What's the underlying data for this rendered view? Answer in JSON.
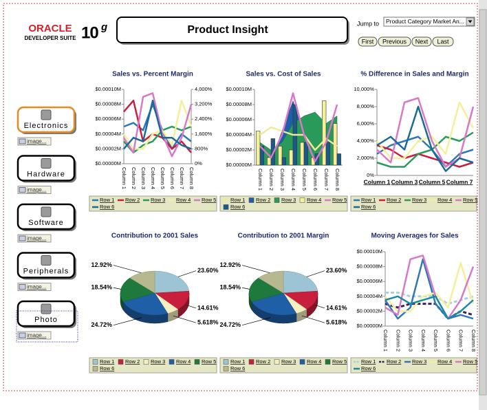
{
  "header": {
    "logo_brand": "ORACLE",
    "logo_suite": "DEVELOPER SUITE",
    "logo_version": "10",
    "logo_version_sup": "g",
    "title": "Product Insight"
  },
  "jump": {
    "label": "Jump to",
    "selected": "Product Category Market An...",
    "buttons": [
      "First",
      "Previous",
      "Next",
      "Last"
    ]
  },
  "nav": [
    {
      "label": "Electronics",
      "link": "image..."
    },
    {
      "label": "Hardware",
      "link": "image..."
    },
    {
      "label": "Software",
      "link": "image..."
    },
    {
      "label": "Peripherals",
      "link": "image..."
    },
    {
      "label": "Photo",
      "link": "image..."
    }
  ],
  "charts": [
    {
      "type": "line",
      "title": "Sales vs. Percent Margin",
      "categories": [
        "Column 1",
        "Column 2",
        "Column 3",
        "Column 4",
        "Column 5",
        "Column 6",
        "Column 7",
        "Column 8"
      ],
      "ylim": [
        0,
        0.0001
      ],
      "yticks": [
        {
          "value": 0,
          "label": "$0.00000M"
        },
        {
          "value": 2e-05,
          "label": "$0.00002M"
        },
        {
          "value": 4e-05,
          "label": "$0.00004M"
        },
        {
          "value": 6e-05,
          "label": "$0.00006M"
        },
        {
          "value": 8e-05,
          "label": "$0.00008M"
        },
        {
          "value": 0.0001,
          "label": "$0.00010M"
        }
      ],
      "y2lim": [
        0,
        4000
      ],
      "y2ticks": [
        {
          "value": 0,
          "label": "0%"
        },
        {
          "value": 800,
          "label": "800%"
        },
        {
          "value": 1600,
          "label": "1,600%"
        },
        {
          "value": 2400,
          "label": "2,400%"
        },
        {
          "value": 3200,
          "label": "3,200%"
        },
        {
          "value": 4000,
          "label": "4,000%"
        }
      ],
      "series": [
        {
          "name": "Row 1",
          "color": "#2f78b8",
          "values": [
            5e-05,
            5.5e-05,
            4.5e-05,
            8e-05,
            4.5e-05,
            2e-05,
            4e-05,
            3e-05
          ]
        },
        {
          "name": "Row 2",
          "color": "#c8203c",
          "values": [
            7e-05,
            8.5e-05,
            3e-05,
            4e-05,
            3.5e-05,
            2e-05,
            3e-05,
            1.5e-05
          ]
        },
        {
          "name": "Row 3",
          "color": "#2a9a5a",
          "values": [
            3e-05,
            1.5e-05,
            2.5e-05,
            3e-05,
            4.5e-05,
            5e-05,
            4.5e-05,
            5e-05
          ]
        },
        {
          "name": "Row 4",
          "color": "#f4f09a",
          "values": [
            4e-05,
            2e-05,
            2e-05,
            4e-05,
            4.5e-05,
            2.5e-05,
            8.5e-05,
            5e-05
          ]
        },
        {
          "name": "Row 5",
          "color": "#d878c8",
          "values": [
            3.5e-05,
            1.5e-05,
            9e-05,
            9.5e-05,
            4e-05,
            1e-05,
            3.5e-05,
            8e-05
          ]
        },
        {
          "name": "Row 6",
          "color": "#1a6a98",
          "values": [
            2e-05,
            3.5e-05,
            3e-05,
            8.5e-05,
            3.5e-05,
            3.5e-05,
            2.5e-05,
            2e-05
          ]
        }
      ]
    },
    {
      "type": "bar",
      "title": "Sales vs. Cost of Sales",
      "categories": [
        "Column 1",
        "Column 2",
        "Column 3",
        "Column 4",
        "Column 5",
        "Column 6",
        "Column 7",
        "Column 8"
      ],
      "ylim": [
        0,
        0.0001
      ],
      "yticks": [
        {
          "value": 0,
          "label": "$0.00000M"
        },
        {
          "value": 2e-05,
          "label": "$0.00002M"
        },
        {
          "value": 4e-05,
          "label": "$0.00004M"
        },
        {
          "value": 6e-05,
          "label": "$0.00006M"
        },
        {
          "value": 8e-05,
          "label": "$0.00008M"
        },
        {
          "value": 0.0001,
          "label": "$0.00010M"
        }
      ],
      "series": [
        {
          "name": "Row 1",
          "color": "#eeea96",
          "mark": "line",
          "values": [
            4e-05,
            5e-05,
            4.5e-05,
            4e-05,
            4e-05,
            2e-05,
            3.5e-05,
            2.5e-05
          ]
        },
        {
          "name": "Row 2",
          "color": "#1f5fa8",
          "mark": "area",
          "values": [
            2e-05,
            5e-06,
            4.5e-05,
            8.5e-05,
            4e-05,
            5e-06,
            2e-05,
            2e-05
          ]
        },
        {
          "name": "Row 3",
          "color": "#2a9a5a",
          "mark": "area",
          "values": [
            3e-05,
            2e-05,
            3e-05,
            5.5e-05,
            6.5e-05,
            7e-05,
            5.5e-05,
            6.5e-05
          ]
        },
        {
          "name": "Row 4",
          "color": "#f4f09a",
          "mark": "bar",
          "values": [
            4.5e-05,
            1e-05,
            2.5e-05,
            2e-05,
            3e-05,
            1e-05,
            8.5e-05,
            5.5e-05
          ]
        },
        {
          "name": "Row 5",
          "color": "#d878c8",
          "mark": "line",
          "values": [
            2.5e-05,
            1e-05,
            4e-05,
            9.5e-05,
            4e-05,
            5e-06,
            3e-05,
            8e-05
          ]
        },
        {
          "name": "Row 6",
          "color": "#1a5a88",
          "mark": "bar",
          "values": [
            2.5e-05,
            3.5e-05,
            1e-05,
            8e-05,
            3e-05,
            1.5e-05,
            3e-05,
            1.5e-05
          ]
        }
      ]
    },
    {
      "type": "line",
      "title": "% Difference in Sales and Margin",
      "categories": [
        "Column 1",
        null,
        "Column 3",
        null,
        "Column 5",
        null,
        "Column 7",
        null
      ],
      "ylim": [
        0,
        10000
      ],
      "yticks": [
        {
          "value": 0,
          "label": "0%"
        },
        {
          "value": 2000,
          "label": "2,000%"
        },
        {
          "value": 4000,
          "label": "4,000%"
        },
        {
          "value": 6000,
          "label": "6,000%"
        },
        {
          "value": 8000,
          "label": "8,000%"
        },
        {
          "value": 10000,
          "label": "10,000%"
        }
      ],
      "series": [
        {
          "name": "Row 1",
          "color": "#2f78b8",
          "values": [
            2500,
            3500,
            4000,
            4500,
            3000,
            1000,
            2500,
            3000
          ]
        },
        {
          "name": "Row 2",
          "color": "#c8203c",
          "values": [
            3500,
            3000,
            2000,
            2500,
            2000,
            1500,
            1000,
            1500
          ]
        },
        {
          "name": "Row 3",
          "color": "#2a9a5a",
          "values": [
            1500,
            1000,
            1000,
            2500,
            3000,
            4500,
            4000,
            5000
          ]
        },
        {
          "name": "Row 4",
          "color": "#f4f09a",
          "values": [
            4000,
            2000,
            2000,
            4000,
            4500,
            2500,
            8500,
            5500
          ]
        },
        {
          "name": "Row 5",
          "color": "#d878c8",
          "values": [
            3000,
            1500,
            8500,
            9000,
            4000,
            1000,
            2000,
            8000
          ]
        },
        {
          "name": "Row 6",
          "color": "#1a6a98",
          "values": [
            3500,
            4500,
            3000,
            8000,
            3000,
            500,
            2000,
            1500
          ]
        }
      ]
    },
    {
      "type": "pie",
      "title": "Contribution to 2001 Sales",
      "categories": [
        "Row 1",
        "Row 2",
        "Row 3",
        "Row 4",
        "Row 5",
        "Row 6"
      ],
      "values": [
        23.6,
        14.61,
        5.618,
        24.72,
        18.54,
        12.92
      ],
      "value_labels": [
        "23.60%",
        "14.61%",
        "5.618%",
        "24.72%",
        "18.54%",
        "12.92%"
      ],
      "colors": [
        "#9cc4d4",
        "#c8203c",
        "#f4f0c0",
        "#1f5fa8",
        "#1e7a3c",
        "#b8b890"
      ]
    },
    {
      "type": "pie",
      "title": "Contribution to 2001 Margin",
      "categories": [
        "Row 1",
        "Row 2",
        "Row 3",
        "Row 4",
        "Row 5",
        "Row 6"
      ],
      "values": [
        23.6,
        14.61,
        5.618,
        24.72,
        18.54,
        12.92
      ],
      "value_labels": [
        "23.60%",
        "14.61%",
        "5.618%",
        "24.72%",
        "18.54%",
        "12.92%"
      ],
      "colors": [
        "#9cc4d4",
        "#c8203c",
        "#f4f0c0",
        "#1f5fa8",
        "#1e7a3c",
        "#b8b890"
      ]
    },
    {
      "type": "line",
      "title": "Moving Averages for Sales",
      "categories": [
        "Column 1",
        "Column 2",
        "Column 3",
        "Column 4",
        "Column 5",
        "Column 6",
        "Column 7",
        "Column 8"
      ],
      "ylim": [
        0,
        0.0001
      ],
      "yticks": [
        {
          "value": 0,
          "label": "$0.00000M"
        },
        {
          "value": 2e-05,
          "label": "$0.00002M"
        },
        {
          "value": 4e-05,
          "label": "$0.00004M"
        },
        {
          "value": 6e-05,
          "label": "$0.00006M"
        },
        {
          "value": 8e-05,
          "label": "$0.00008M"
        },
        {
          "value": 0.0001,
          "label": "$0.00010M"
        }
      ],
      "series": [
        {
          "name": "Row 1",
          "color": "#a8d0d8",
          "style": "dashed",
          "values": [
            4.5e-05,
            4.5e-05,
            4e-05,
            4e-05,
            4e-05,
            3e-05,
            3.5e-05,
            4e-05
          ]
        },
        {
          "name": "Row 2",
          "color": "#3a2060",
          "style": "dashed",
          "values": [
            3e-05,
            2.5e-05,
            3e-05,
            3e-05,
            3e-05,
            1e-05,
            2e-05,
            1.5e-05
          ]
        },
        {
          "name": "Row 3",
          "color": "#2f78b8",
          "values": [
            3.5e-05,
            1e-05,
            2.5e-05,
            9e-05,
            3e-05,
            1e-05,
            1.5e-05,
            1e-05
          ]
        },
        {
          "name": "Row 4",
          "color": "#f4f09a",
          "values": [
            4e-05,
            2e-05,
            2e-05,
            4e-05,
            4.5e-05,
            2.5e-05,
            8.5e-05,
            3e-05
          ]
        },
        {
          "name": "Row 5",
          "color": "#d878c8",
          "values": [
            2.5e-05,
            1.5e-05,
            9e-05,
            9.5e-05,
            4e-05,
            1e-05,
            3.5e-05,
            8e-05
          ]
        },
        {
          "name": "Row 6",
          "color": "#1a8aa0",
          "values": [
            3.5e-05,
            4e-05,
            3e-05,
            3.5e-05,
            4e-05,
            1e-05,
            2e-05,
            3.5e-05
          ]
        }
      ]
    }
  ]
}
